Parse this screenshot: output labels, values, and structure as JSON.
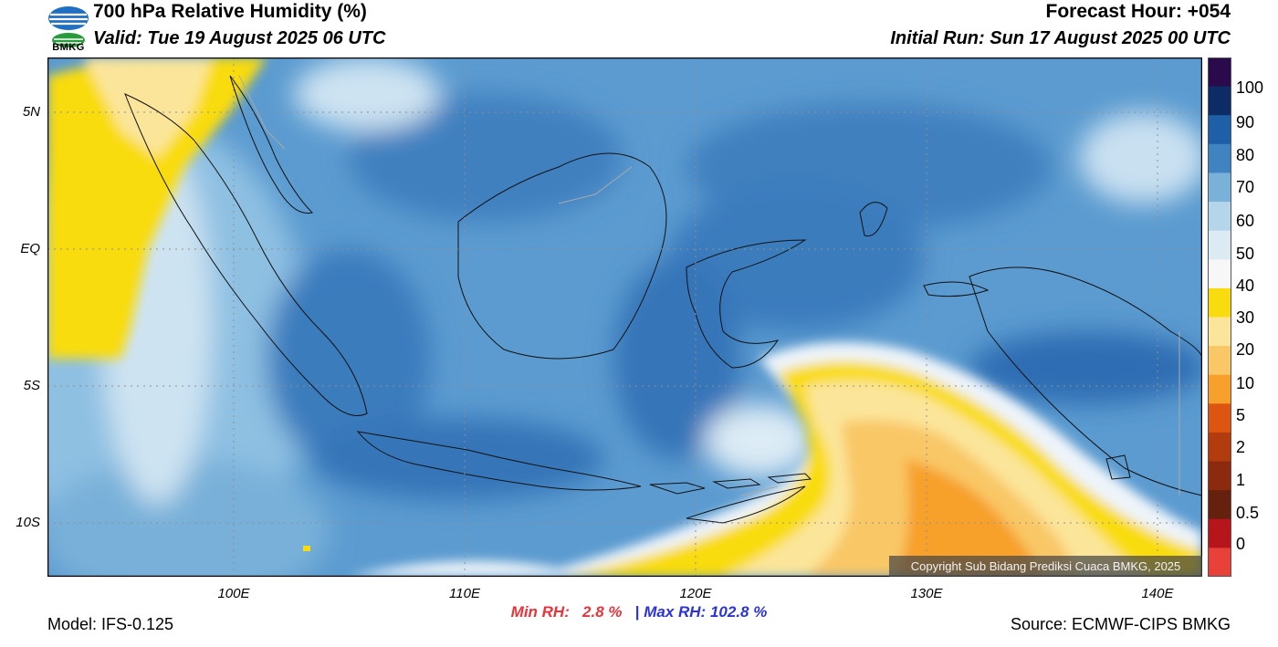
{
  "header": {
    "title": "700 hPa Relative Humidity (%)",
    "valid": "Valid: Tue 19 August 2025 06 UTC",
    "forecast_hour": "Forecast Hour: +054",
    "initial_run": "Initial Run: Sun 17 August 2025 00 UTC",
    "logo_text": "BMKG"
  },
  "map": {
    "lat_labels": [
      "5N",
      "EQ",
      "5S",
      "10S"
    ],
    "lon_labels": [
      "100E",
      "110E",
      "120E",
      "130E",
      "140E"
    ],
    "copyright": "Copyright Sub Bidang Prediksi Cuaca BMKG, 2025"
  },
  "colorbar": {
    "labels": [
      "100",
      "90",
      "80",
      "70",
      "60",
      "50",
      "40",
      "30",
      "20",
      "10",
      "5",
      "2",
      "1",
      "0.5",
      "0"
    ],
    "colors": [
      "#2a0a4d",
      "#0d2c66",
      "#1f5fa8",
      "#3f84c1",
      "#79b1d9",
      "#b4d5ea",
      "#dceaf4",
      "#f7f7f7",
      "#f9dc10",
      "#fbe59a",
      "#f9c766",
      "#f7a02c",
      "#dd5510",
      "#b23c0e",
      "#8c2a10",
      "#66200e",
      "#b5151b",
      "#e8413a"
    ]
  },
  "footer": {
    "min_rh_label": "Min RH:",
    "min_rh_value": "2.8 %",
    "separator": "|",
    "max_rh_label": "Max RH:",
    "max_rh_value": "102.8 %",
    "model": "Model: IFS-0.125",
    "source": "Source: ECMWF-CIPS BMKG"
  }
}
